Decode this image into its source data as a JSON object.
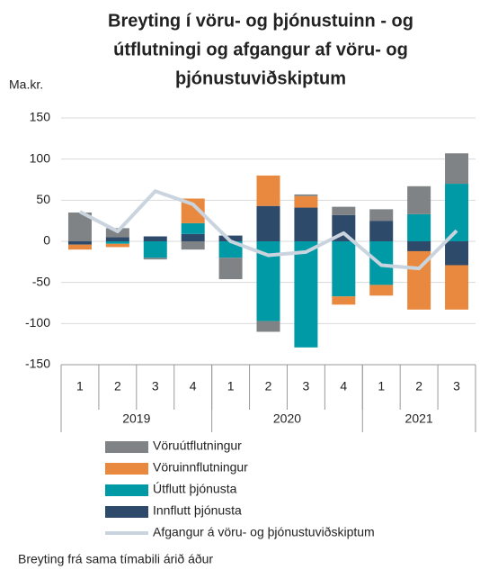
{
  "chart_data": {
    "type": "stacked_bar_line",
    "title_lines": [
      "Breyting í vöru- og þjónustuinn - og",
      "útflutningi og afgangur af vöru- og",
      "þjónustuviðskiptum"
    ],
    "y_label": "Ma.kr.",
    "footnote": "Breyting frá sama tímabili árið áður",
    "categories": [
      "1",
      "2",
      "3",
      "4",
      "1",
      "2",
      "3",
      "4",
      "1",
      "2",
      "3"
    ],
    "groups": [
      {
        "label": "2019",
        "count": 4
      },
      {
        "label": "2020",
        "count": 4
      },
      {
        "label": "2021",
        "count": 3
      }
    ],
    "series": [
      {
        "name": "Vöruútflutningur",
        "color": "#7f8385",
        "values": [
          35,
          11,
          -2,
          -10,
          -26,
          -13,
          2,
          10,
          14,
          34,
          37
        ]
      },
      {
        "name": "Vöruinnflutningur",
        "color": "#e8893f",
        "values": [
          -6,
          -4,
          0,
          30,
          0,
          37,
          14,
          -10,
          -13,
          -71,
          -54
        ]
      },
      {
        "name": "Útflutt þjónusta",
        "color": "#009aa6",
        "values": [
          0,
          -3,
          -20,
          13,
          -20,
          -97,
          -129,
          -67,
          -53,
          33,
          70
        ]
      },
      {
        "name": "Innflutt þjónusta",
        "color": "#2e4a6b",
        "values": [
          -4,
          5,
          6,
          9,
          7,
          43,
          41,
          32,
          25,
          -12,
          -29
        ]
      }
    ],
    "line": {
      "name": "Afgangur á vöru- og þjónustuviðskiptum",
      "color": "#c9d4de",
      "values": [
        36,
        12,
        61,
        45,
        0,
        -17,
        -13,
        10,
        -29,
        -33,
        13
      ]
    },
    "ylim": [
      -150,
      150
    ],
    "yticks": [
      -150,
      -100,
      -50,
      0,
      50,
      100,
      150
    ],
    "grid": true
  }
}
